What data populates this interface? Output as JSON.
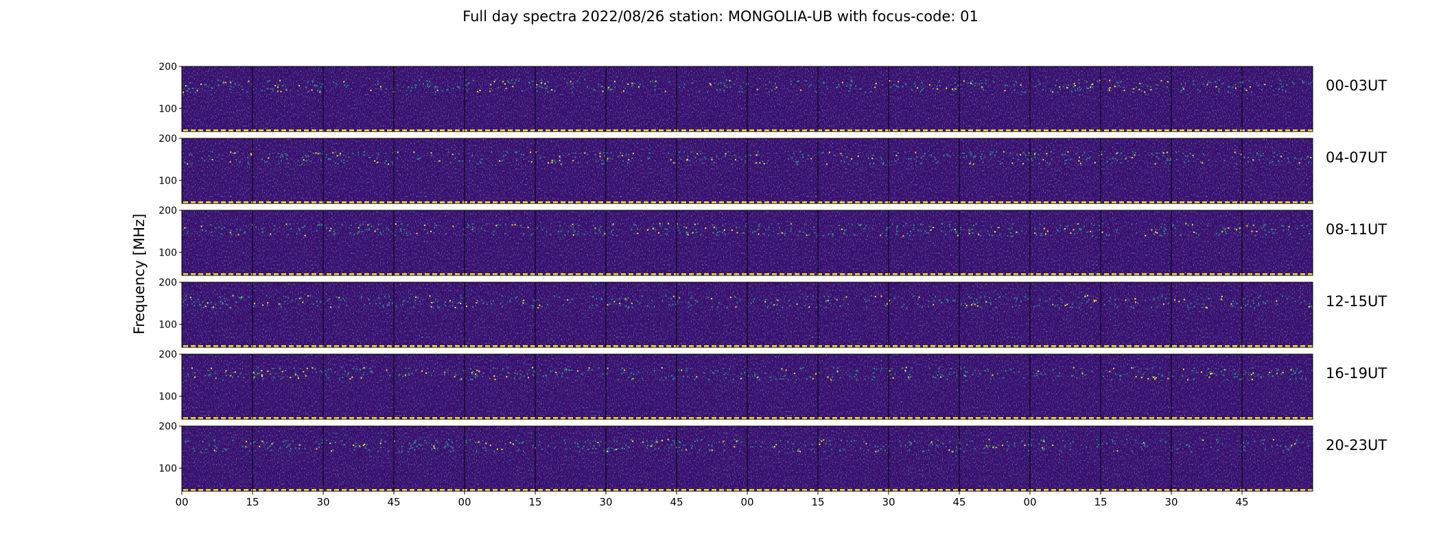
{
  "chart_data": {
    "type": "heatmap",
    "title": "Full day spectra 2022/08/26 station: MONGOLIA-UB with focus-code: 01",
    "xlabel": "",
    "ylabel": "Frequency [MHz]",
    "x_tick_labels": [
      "00",
      "15",
      "30",
      "45",
      "00",
      "15",
      "30",
      "45",
      "00",
      "15",
      "30",
      "45",
      "00",
      "15",
      "30",
      "45"
    ],
    "y_ticks": [
      100,
      200
    ],
    "ylim": [
      45,
      200
    ],
    "grid": false,
    "panels_per_row": 16,
    "minutes_per_panel": 15,
    "rows": [
      {
        "label": "00-03UT"
      },
      {
        "label": "04-07UT"
      },
      {
        "label": "08-11UT"
      },
      {
        "label": "12-15UT"
      },
      {
        "label": "16-19UT"
      },
      {
        "label": "20-23UT"
      }
    ],
    "colormap": {
      "name": "viridis",
      "background": "#3b0f70",
      "low": "#440154",
      "mid": "#21918c",
      "high": "#fde725"
    },
    "persistent_features": [
      {
        "type": "marker_band",
        "frequency_mhz": 45,
        "color": "#fde725"
      },
      {
        "type": "emission_band",
        "frequency_mhz": [
          140,
          170
        ],
        "color": "#2db27d"
      }
    ]
  }
}
